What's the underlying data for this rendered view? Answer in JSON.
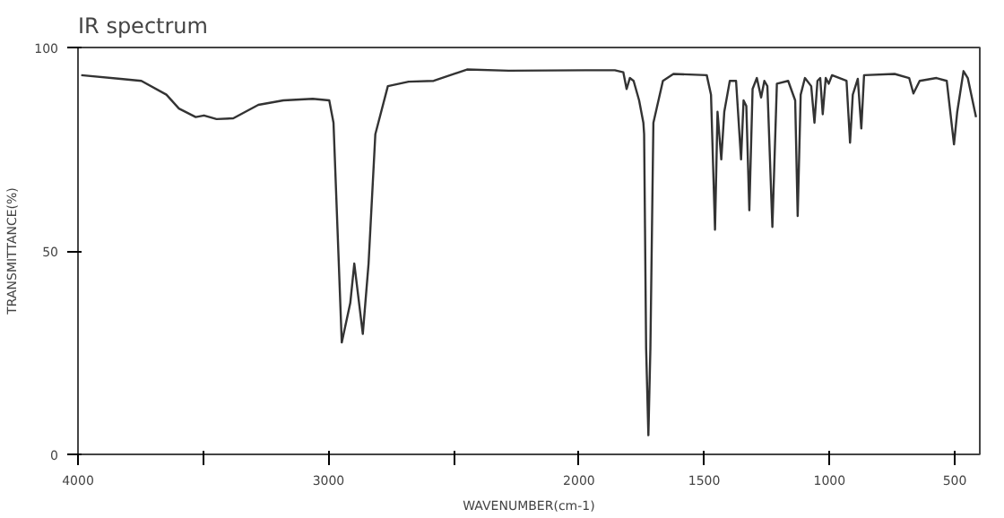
{
  "chart_data": {
    "type": "line",
    "title": "IR spectrum",
    "xlabel": "WAVENUMBER(cm-1)",
    "ylabel": "TRANSMITTANCE(%)",
    "x": [
      3987,
      3830,
      3747,
      3647,
      3597,
      3530,
      3497,
      3447,
      3380,
      3280,
      3180,
      3063,
      2997,
      2980,
      2947,
      2913,
      2897,
      2863,
      2840,
      2813,
      2763,
      2680,
      2580,
      2447,
      2280,
      1973,
      1857,
      1823,
      1810,
      1797,
      1782,
      1760,
      1743,
      1740,
      1732,
      1723,
      1715,
      1703,
      1690,
      1665,
      1623,
      1490,
      1473,
      1457,
      1447,
      1432,
      1420,
      1398,
      1373,
      1353,
      1343,
      1332,
      1320,
      1307,
      1290,
      1273,
      1260,
      1248,
      1228,
      1210,
      1165,
      1137,
      1127,
      1115,
      1098,
      1073,
      1060,
      1048,
      1037,
      1027,
      1015,
      1003,
      990,
      932,
      918,
      907,
      887,
      873,
      862,
      740,
      682,
      665,
      640,
      573,
      532,
      503,
      490,
      465,
      448,
      415
    ],
    "series": [
      {
        "color": "#333333",
        "values": [
          93.2,
          92.3,
          91.8,
          88.4,
          85,
          82.9,
          83.3,
          82.4,
          82.6,
          85.9,
          87,
          87.4,
          87,
          81.5,
          27.5,
          37.2,
          46.9,
          29.6,
          46.9,
          78.7,
          90.5,
          91.6,
          91.8,
          94.6,
          94.3,
          94.4,
          94.4,
          93.9,
          89.8,
          92.5,
          91.8,
          87,
          81.5,
          78.7,
          26,
          4.7,
          26,
          81.5,
          85,
          91.8,
          93.5,
          93.2,
          88.4,
          55.2,
          84.2,
          72.5,
          84.2,
          91.8,
          91.8,
          72.5,
          87,
          85.6,
          60,
          89.8,
          92.5,
          87.7,
          91.8,
          90.5,
          55.9,
          91.1,
          91.8,
          87,
          58.6,
          88.4,
          92.5,
          90.5,
          81.5,
          91.8,
          92.5,
          83.6,
          92.5,
          91.1,
          93.2,
          91.8,
          76.6,
          88.4,
          92.3,
          80.1,
          93.2,
          93.5,
          92.5,
          88.7,
          91.8,
          92.5,
          91.8,
          76.2,
          84.2,
          94.2,
          92.5,
          82.9
        ]
      }
    ],
    "xlim": [
      4000,
      400
    ],
    "ylim": [
      0,
      100
    ],
    "xticks": [
      4000,
      {
        "value": 3500,
        "label": null
      },
      3000,
      {
        "value": 2500,
        "label": null
      },
      2000,
      1500,
      1000,
      500
    ],
    "yticks": [
      0,
      50,
      100
    ],
    "grid": false,
    "marker": "none",
    "line_style": "solid"
  }
}
